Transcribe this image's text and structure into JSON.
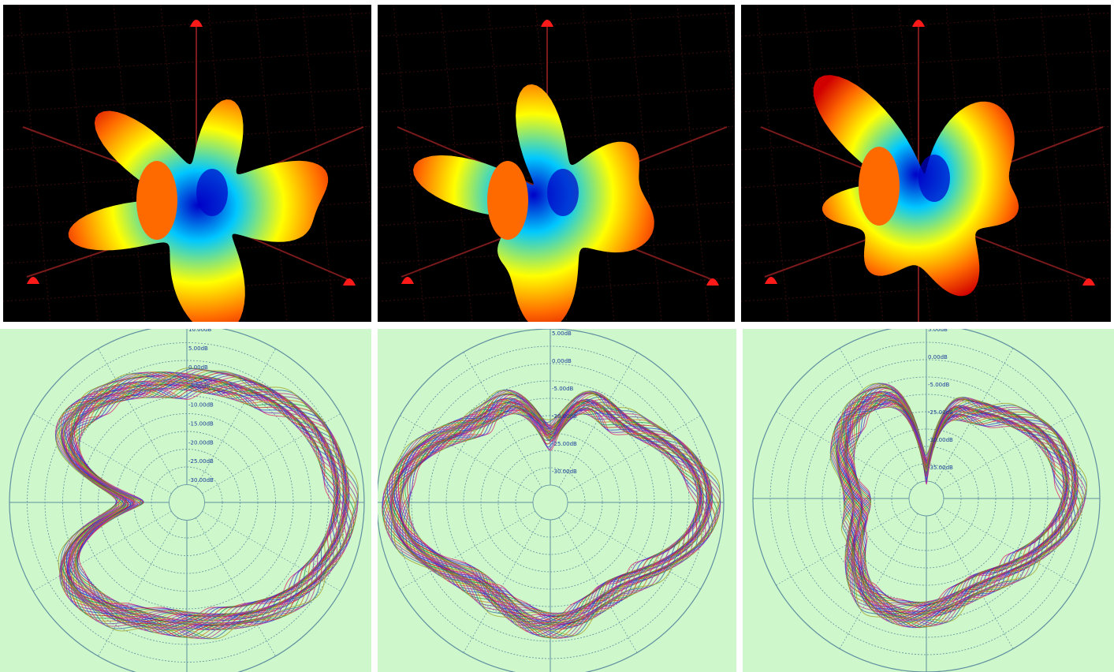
{
  "colors": {
    "background_3d": "#000000",
    "background_polar": "#cef7cb",
    "grid_polar": "#5f8fa0",
    "axis_3d": "#7a1a1a",
    "marker": "#ff1a1a",
    "colormap": [
      "#0000c8",
      "#00c8ff",
      "#ffff00",
      "#ff6a00",
      "#d00000"
    ]
  },
  "chart_data": [
    {
      "type": "surface3d",
      "position": "top-left",
      "colormap": "jet"
    },
    {
      "type": "surface3d",
      "position": "top-middle",
      "colormap": "jet"
    },
    {
      "type": "surface3d",
      "position": "top-right",
      "colormap": "jet"
    },
    {
      "type": "polar",
      "position": "bottom-left",
      "unit": "dB",
      "rings": 10,
      "spokes": 12,
      "tick_labels": [
        "10.00dB",
        "5.00dB",
        "0.00dB",
        "-5.00dB",
        "-10.00dB",
        "-15.00dB",
        "-20.00dB",
        "-25.00dB",
        "-30.00dB"
      ],
      "series_count": 40,
      "pattern_shape": "near-circular with deep null toward 180°",
      "radius_range_db": [
        -30,
        10
      ]
    },
    {
      "type": "polar",
      "position": "bottom-middle",
      "unit": "dB",
      "rings": 10,
      "spokes": 12,
      "tick_labels": [
        "5.00dB",
        "0.00dB",
        "-5.00dB",
        "-20.00dB",
        "-25.00dB",
        "-30.00dB"
      ],
      "series_count": 40,
      "pattern_shape": "four-lobed horizontal",
      "radius_range_db": [
        -30,
        5
      ]
    },
    {
      "type": "polar",
      "position": "bottom-right",
      "unit": "dB",
      "rings": 10,
      "spokes": 12,
      "tick_labels": [
        "5.00dB",
        "0.00dB",
        "-5.00dB",
        "-25.00dB",
        "-30.00dB",
        "-35.00dB"
      ],
      "series_count": 40,
      "pattern_shape": "lobed with top notches",
      "radius_range_db": [
        -35,
        5
      ]
    }
  ]
}
